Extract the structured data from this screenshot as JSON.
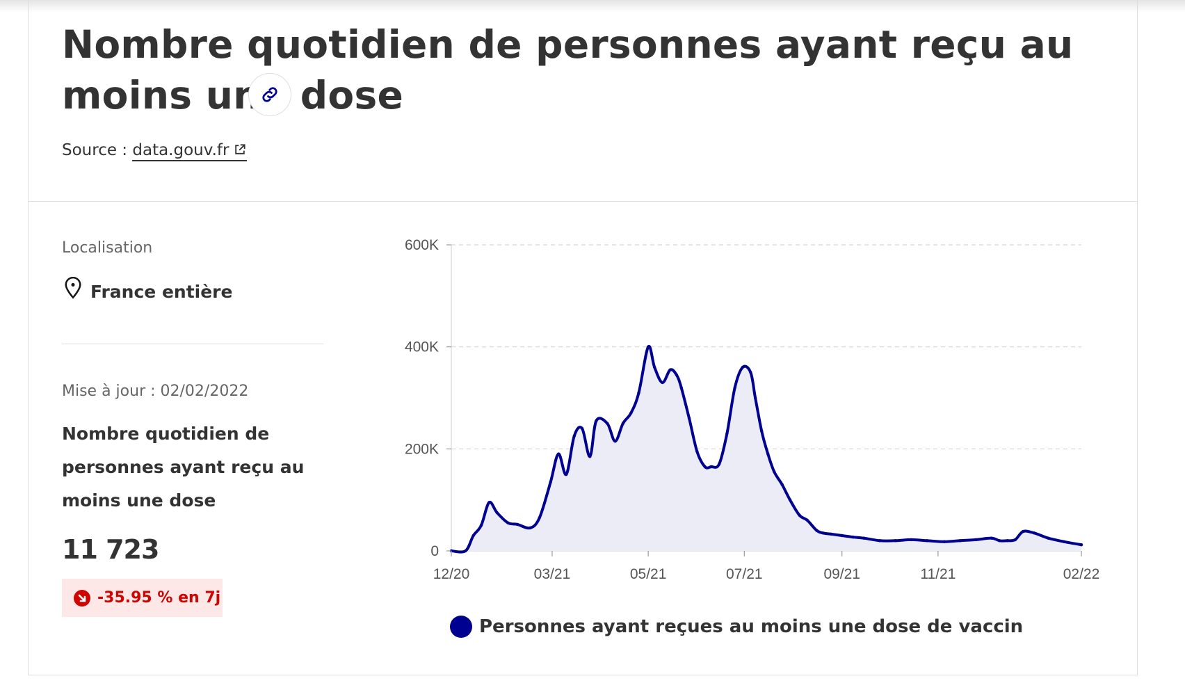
{
  "header": {
    "title": "Nombre quotidien de personnes ayant reçu au moins une dose",
    "source_prefix": "Source : ",
    "source_link": "data.gouv.fr"
  },
  "sidebar": {
    "location_label": "Localisation",
    "location_value": "France entière",
    "update_text": "Mise à jour : 02/02/2022",
    "stat_title": "Nombre quotidien de personnes ayant reçu au moins une dose",
    "stat_value": "11 723",
    "change_badge": "-35.95 % en 7j"
  },
  "colors": {
    "accent": "#000091",
    "fill": "#ececf6",
    "badge_bg": "#fde8e7",
    "badge_text": "#ce0500"
  },
  "icons": [
    "link-icon",
    "external-link-icon",
    "map-pin-icon",
    "arrow-down-right-icon"
  ],
  "chart_data": {
    "type": "area",
    "x": [
      "2020-12-27",
      "2021-01-05",
      "2021-01-10",
      "2021-01-15",
      "2021-01-20",
      "2021-01-25",
      "2021-02-01",
      "2021-02-07",
      "2021-02-15",
      "2021-02-21",
      "2021-02-28",
      "2021-03-05",
      "2021-03-10",
      "2021-03-15",
      "2021-03-20",
      "2021-03-25",
      "2021-03-29",
      "2021-04-05",
      "2021-04-10",
      "2021-04-15",
      "2021-04-20",
      "2021-04-25",
      "2021-05-01",
      "2021-05-05",
      "2021-05-10",
      "2021-05-15",
      "2021-05-19",
      "2021-05-22",
      "2021-05-27",
      "2021-06-01",
      "2021-06-06",
      "2021-06-10",
      "2021-06-15",
      "2021-06-20",
      "2021-06-25",
      "2021-06-30",
      "2021-07-05",
      "2021-07-08",
      "2021-07-12",
      "2021-07-16",
      "2021-07-20",
      "2021-07-25",
      "2021-07-30",
      "2021-08-05",
      "2021-08-10",
      "2021-08-16",
      "2021-08-20",
      "2021-08-25",
      "2021-09-01",
      "2021-09-08",
      "2021-09-15",
      "2021-09-25",
      "2021-10-05",
      "2021-10-15",
      "2021-10-25",
      "2021-11-05",
      "2021-11-15",
      "2021-11-25",
      "2021-12-05",
      "2021-12-10",
      "2021-12-15",
      "2021-12-20",
      "2021-12-25",
      "2022-01-01",
      "2022-01-10",
      "2022-01-20",
      "2022-01-31"
    ],
    "series": [
      {
        "values": [
          0,
          0,
          30000,
          50000,
          95000,
          75000,
          55000,
          52000,
          45000,
          65000,
          135000,
          190000,
          150000,
          225000,
          240000,
          185000,
          255000,
          250000,
          215000,
          250000,
          270000,
          310000,
          400000,
          360000,
          330000,
          355000,
          345000,
          320000,
          260000,
          195000,
          165000,
          165000,
          170000,
          230000,
          320000,
          360000,
          350000,
          300000,
          235000,
          190000,
          155000,
          130000,
          100000,
          70000,
          60000,
          40000,
          35000,
          33000,
          30000,
          27000,
          25000,
          20000,
          20000,
          22000,
          20000,
          18000,
          20000,
          22000,
          25000,
          20000,
          20000,
          22000,
          38000,
          35000,
          25000,
          18000,
          12000
        ]
      }
    ],
    "x_ticks": [
      "12/20",
      "03/21",
      "05/21",
      "07/21",
      "09/21",
      "11/21",
      "02/22"
    ],
    "y_ticks": [
      "0",
      "200K",
      "400K",
      "600K"
    ],
    "y_tick_values": [
      0,
      200000,
      400000,
      600000
    ],
    "ylim": [
      0,
      600000
    ],
    "legend": [
      "Personnes ayant reçues au moins une dose de vaccin"
    ],
    "legend_position": "bottom",
    "grid": true
  }
}
